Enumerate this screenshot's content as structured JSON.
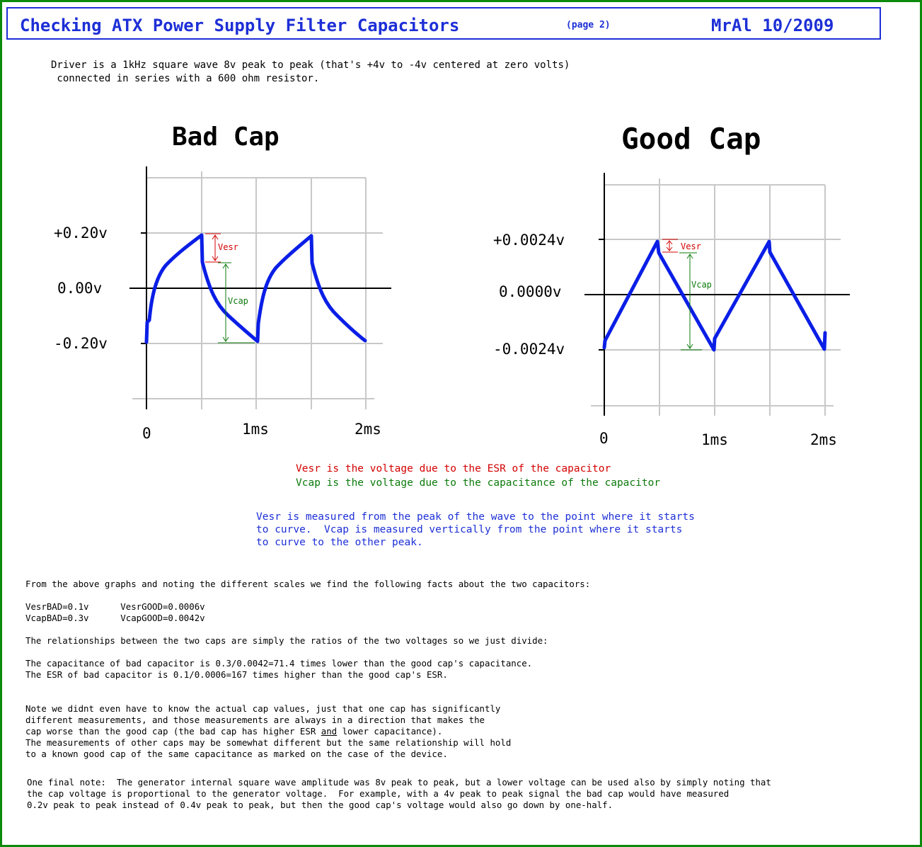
{
  "header": {
    "title": "Checking ATX Power Supply Filter Capacitors",
    "page": "(page 2)",
    "author_date": "MrAl 10/2009"
  },
  "intro": [
    "Driver is a 1kHz square wave 8v peak to peak (that's +4v to -4v centered at zero volts)",
    " connected in series with a 600 ohm resistor."
  ],
  "bad_cap": {
    "title": "Bad Cap",
    "y_labels": [
      "+0.20v",
      "0.00v",
      "-0.20v"
    ],
    "x_labels": [
      "0",
      "1ms",
      "2ms"
    ],
    "vesr_label": "Vesr",
    "vcap_label": "Vcap"
  },
  "good_cap": {
    "title": "Good Cap",
    "y_labels": [
      "+0.0024v",
      "0.0000v",
      "-0.0024v"
    ],
    "x_labels": [
      "0",
      "1ms",
      "2ms"
    ],
    "vesr_label": "Vesr",
    "vcap_label": "Vcap"
  },
  "legend": {
    "vesr": "Vesr is the voltage due to the ESR of the capacitor",
    "vcap": "Vcap is the voltage due to the capacitance of the capacitor"
  },
  "measure_note": [
    "Vesr is measured from the peak of the wave to the point where it starts",
    "to curve.  Vcap is measured vertically from the point where it starts",
    "to curve to the other peak."
  ],
  "facts_intro": "From the above graphs and noting the different scales we find the following facts about the two capacitors:",
  "measurements": [
    "VesrBAD=0.1v      VesrGOOD=0.0006v",
    "VcapBAD=0.3v      VcapGOOD=0.0042v"
  ],
  "relationships": "The relationships between the two caps are simply the ratios of the two voltages so we just divide:",
  "results": [
    "The capacitance of bad capacitor is 0.3/0.0042=71.4 times lower than the good cap's capacitance.",
    "The ESR of bad capacitor is 0.1/0.0006=167 times higher than the good cap's ESR."
  ],
  "note": {
    "line1": "Note we didnt even have to know the actual cap values, just that one cap has significantly",
    "line2": "different measurements, and those measurements are always in a direction that makes the",
    "line3_a": "cap worse than the good cap (the bad cap has higher ESR ",
    "line3_and": "and",
    "line3_b": " lower capacitance).",
    "line4": "The measurements of other caps may be somewhat different but the same relationship will hold",
    "line5": "to a known good cap of the same capacitance as marked on the case of the device."
  },
  "final_note": [
    "One final note:  The generator internal square wave amplitude was 8v peak to peak, but a lower voltage can be used also by simply noting that",
    "the cap voltage is proportional to the generator voltage.  For example, with a 4v peak to peak signal the bad cap would have measured",
    "0.2v peak to peak instead of 0.4v peak to peak, but then the good cap's voltage would also go down by one-half."
  ],
  "colors": {
    "border": "#0c8a0c",
    "title_blue": "#1d2fd6",
    "waveform_blue": "#0a1ee6",
    "vesr_red": "#d40000",
    "vcap_green": "#0c7a0c",
    "grid": "#c8c8c8"
  }
}
